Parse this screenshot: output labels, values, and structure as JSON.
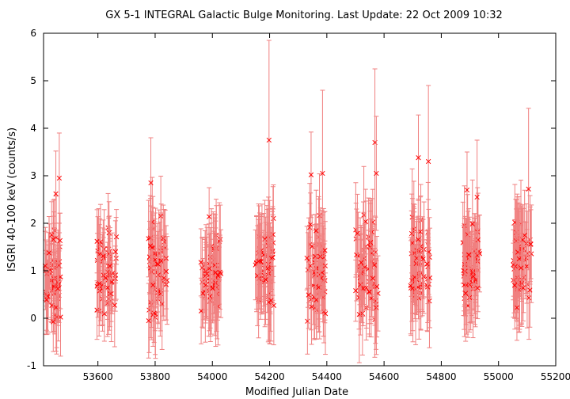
{
  "chart_data": {
    "type": "scatter",
    "title": "GX 5-1   INTEGRAL Galactic Bulge Monitoring.  Last Update: 22 Oct 2009 10:32",
    "xlabel": "Modified Julian Date",
    "ylabel": "ISGRI 40-100 keV (counts/s)",
    "xlim": [
      53410,
      55200
    ],
    "ylim": [
      -1,
      6
    ],
    "xticks": [
      "53600",
      "53800",
      "54000",
      "54200",
      "54400",
      "54600",
      "54800",
      "55000",
      "55200"
    ],
    "yticks": [
      "-1",
      "0",
      "1",
      "2",
      "3",
      "4",
      "5",
      "6"
    ],
    "grid": false,
    "marker": "x",
    "error_bars": true,
    "color": "#ff0000",
    "errorbar_color": "#f08080",
    "observation_windows": [
      {
        "x_start": 53415,
        "x_end": 53470,
        "y_mean": 0.9,
        "y_spread": 0.75,
        "err": 0.75
      },
      {
        "x_start": 53595,
        "x_end": 53665,
        "y_mean": 0.95,
        "y_spread": 0.65,
        "err": 0.7
      },
      {
        "x_start": 53775,
        "x_end": 53845,
        "y_mean": 1.0,
        "y_spread": 0.8,
        "err": 0.8
      },
      {
        "x_start": 53960,
        "x_end": 54030,
        "y_mean": 1.0,
        "y_spread": 0.75,
        "err": 0.8
      },
      {
        "x_start": 54150,
        "x_end": 54215,
        "y_mean": 1.05,
        "y_spread": 0.8,
        "err": 0.85
      },
      {
        "x_start": 54330,
        "x_end": 54395,
        "y_mean": 1.0,
        "y_spread": 0.8,
        "err": 0.8
      },
      {
        "x_start": 54500,
        "x_end": 54580,
        "y_mean": 1.05,
        "y_spread": 0.85,
        "err": 0.85
      },
      {
        "x_start": 54690,
        "x_end": 54760,
        "y_mean": 1.1,
        "y_spread": 0.8,
        "err": 0.85
      },
      {
        "x_start": 54875,
        "x_end": 54935,
        "y_mean": 1.1,
        "y_spread": 0.75,
        "err": 0.85
      },
      {
        "x_start": 55050,
        "x_end": 55115,
        "y_mean": 1.1,
        "y_spread": 0.75,
        "err": 0.85
      }
    ],
    "highlighted_points": [
      {
        "x": 53465,
        "y": 2.95,
        "err": 0.95
      },
      {
        "x": 53453,
        "y": 2.62,
        "err": 0.9
      },
      {
        "x": 53785,
        "y": 2.85,
        "err": 0.95
      },
      {
        "x": 54198,
        "y": 3.75,
        "err": 2.1
      },
      {
        "x": 54345,
        "y": 3.02,
        "err": 0.9
      },
      {
        "x": 54385,
        "y": 3.05,
        "err": 1.75
      },
      {
        "x": 54568,
        "y": 3.7,
        "err": 1.55
      },
      {
        "x": 54573,
        "y": 3.05,
        "err": 1.2
      },
      {
        "x": 54720,
        "y": 3.38,
        "err": 0.9
      },
      {
        "x": 54755,
        "y": 3.3,
        "err": 1.6
      },
      {
        "x": 54890,
        "y": 2.7,
        "err": 0.8
      },
      {
        "x": 54925,
        "y": 2.55,
        "err": 1.2
      },
      {
        "x": 55105,
        "y": 2.72,
        "err": 1.7
      }
    ]
  }
}
